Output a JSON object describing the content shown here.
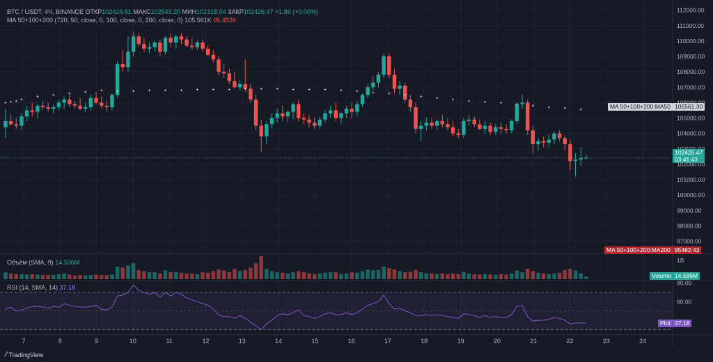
{
  "header": {
    "symbol": "BTC / USDT, 4Ч, BINANCE",
    "open_label": "ОТКР",
    "open": "102424.61",
    "high_label": "МАКС",
    "high": "102543.20",
    "low_label": "МИН",
    "low": "102318.04",
    "close_label": "ЗАКР",
    "close": "102426.47",
    "change": "+1.86 (+0.00%)",
    "ma_label": "MA 50+100+200 (720, 50, close, 0, 100, close, 0, 200, close, 0)",
    "ma_v1": "105.561K",
    "ma_v2": "95.482K"
  },
  "volume_legend": {
    "label": "Объём (SMA, 9)",
    "value": "14.596M"
  },
  "rsi_legend": {
    "label": "RSI (14, SMA, 14)",
    "value": "37.18"
  },
  "tags": {
    "ma50": "MA 50+100+200:MA50",
    "ma50_value": "105561.30",
    "price": "102426.47",
    "countdown": "03:41:43",
    "ma200": "MA 50+100+200:MA200",
    "ma200_value": "95482.43",
    "volume": "Volume",
    "volume_value": "14.596M",
    "rsi_plot": "Plot",
    "rsi_value": "37.18"
  },
  "brand": "TradingView",
  "colors": {
    "up": "#26a69a",
    "down": "#ef5350",
    "rsi": "#7e57c2",
    "ma200_tag": "#b22833",
    "bg": "#161a25"
  },
  "chart_data": {
    "type": "candlestick",
    "price_axis": {
      "ticks": [
        97000,
        98000,
        99000,
        100000,
        101000,
        102000,
        103000,
        104000,
        105000,
        106000,
        107000,
        108000,
        109000,
        110000,
        111000,
        112000
      ],
      "range": [
        96300,
        112300
      ]
    },
    "volume_axis": {
      "ticks": [
        "1B"
      ]
    },
    "rsi_axis": {
      "ticks": [
        80,
        60
      ],
      "bands": [
        70,
        30
      ],
      "range": [
        25,
        82
      ]
    },
    "x_ticks": [
      "7",
      "8",
      "9",
      "10",
      "11",
      "12",
      "13",
      "14",
      "15",
      "16",
      "17",
      "18",
      "19",
      "20",
      "21",
      "22",
      "23",
      "24"
    ],
    "candles": [
      [
        104400,
        105600,
        103700,
        104800
      ],
      [
        104800,
        105200,
        104500,
        104600
      ],
      [
        104600,
        105000,
        104300,
        104500
      ],
      [
        104500,
        105300,
        104200,
        105100
      ],
      [
        105100,
        105800,
        104800,
        105500
      ],
      [
        105500,
        106000,
        105100,
        105400
      ],
      [
        105400,
        105900,
        105000,
        105800
      ],
      [
        105800,
        106100,
        105500,
        105700
      ],
      [
        105700,
        106000,
        105400,
        105600
      ],
      [
        105600,
        105900,
        105300,
        105700
      ],
      [
        105700,
        106200,
        105500,
        106000
      ],
      [
        106000,
        106400,
        105600,
        106200
      ],
      [
        106200,
        106500,
        105700,
        105900
      ],
      [
        105900,
        106100,
        105600,
        105800
      ],
      [
        105800,
        106300,
        105500,
        105600
      ],
      [
        105600,
        106000,
        105400,
        105700
      ],
      [
        105700,
        106500,
        105500,
        106300
      ],
      [
        106300,
        106700,
        105900,
        106000
      ],
      [
        106000,
        106400,
        105600,
        105800
      ],
      [
        105800,
        106100,
        105400,
        105700
      ],
      [
        105700,
        106600,
        105500,
        106500
      ],
      [
        106500,
        108700,
        106300,
        108500
      ],
      [
        108500,
        109400,
        108000,
        108300
      ],
      [
        108300,
        110300,
        108000,
        109300
      ],
      [
        109300,
        110600,
        109000,
        110300
      ],
      [
        110300,
        110500,
        109600,
        109800
      ],
      [
        109800,
        110200,
        109300,
        109500
      ],
      [
        109500,
        109900,
        109200,
        109600
      ],
      [
        109600,
        110000,
        109300,
        109900
      ],
      [
        109900,
        110100,
        109000,
        109300
      ],
      [
        109300,
        110300,
        109100,
        110200
      ],
      [
        110200,
        110500,
        109600,
        109900
      ],
      [
        109900,
        110400,
        109500,
        110300
      ],
      [
        110300,
        110500,
        109800,
        110100
      ],
      [
        110100,
        110300,
        109600,
        109700
      ],
      [
        109700,
        110200,
        109400,
        109600
      ],
      [
        109600,
        110000,
        109400,
        109900
      ],
      [
        109900,
        110100,
        109300,
        109500
      ],
      [
        109500,
        109700,
        109000,
        109100
      ],
      [
        109100,
        109400,
        108600,
        108800
      ],
      [
        108800,
        109000,
        107800,
        108000
      ],
      [
        108000,
        108500,
        107600,
        107900
      ],
      [
        107900,
        108200,
        107200,
        107400
      ],
      [
        107400,
        108000,
        106900,
        107000
      ],
      [
        107000,
        107500,
        106800,
        107200
      ],
      [
        107200,
        108800,
        106700,
        106900
      ],
      [
        106900,
        107200,
        106000,
        106200
      ],
      [
        106200,
        106500,
        104200,
        104500
      ],
      [
        104500,
        104900,
        102800,
        103800
      ],
      [
        103800,
        104800,
        103300,
        104600
      ],
      [
        104600,
        105300,
        104300,
        105000
      ],
      [
        105000,
        105600,
        104700,
        105300
      ],
      [
        105300,
        105800,
        104800,
        105100
      ],
      [
        105100,
        105500,
        104700,
        105400
      ],
      [
        105400,
        106000,
        104900,
        105900
      ],
      [
        105900,
        106200,
        104800,
        105000
      ],
      [
        105000,
        105300,
        104600,
        104900
      ],
      [
        104900,
        105200,
        104400,
        104700
      ],
      [
        104700,
        105000,
        104300,
        104500
      ],
      [
        104500,
        105100,
        104300,
        104900
      ],
      [
        104900,
        105500,
        104700,
        105300
      ],
      [
        105300,
        105800,
        105000,
        105500
      ],
      [
        105500,
        106000,
        104800,
        105000
      ],
      [
        105000,
        105400,
        104600,
        105300
      ],
      [
        105300,
        105800,
        105000,
        105600
      ],
      [
        105600,
        106000,
        105000,
        105400
      ],
      [
        105400,
        106100,
        105100,
        105900
      ],
      [
        105900,
        106600,
        105700,
        106500
      ],
      [
        106500,
        107200,
        106300,
        107000
      ],
      [
        107000,
        107700,
        106800,
        107300
      ],
      [
        107300,
        108000,
        107000,
        107800
      ],
      [
        107800,
        109200,
        107600,
        109000
      ],
      [
        109000,
        109200,
        107600,
        107800
      ],
      [
        107800,
        108200,
        106600,
        106900
      ],
      [
        106900,
        107400,
        106500,
        107100
      ],
      [
        107100,
        107300,
        106000,
        106200
      ],
      [
        106200,
        106500,
        105400,
        105700
      ],
      [
        105700,
        106000,
        104000,
        104300
      ],
      [
        104300,
        104800,
        103500,
        104500
      ],
      [
        104500,
        105000,
        104200,
        104700
      ],
      [
        104700,
        105000,
        104300,
        104500
      ],
      [
        104500,
        104900,
        104200,
        104800
      ],
      [
        104800,
        105200,
        104400,
        104600
      ],
      [
        104600,
        105000,
        104200,
        104400
      ],
      [
        104400,
        104800,
        103800,
        104000
      ],
      [
        104000,
        104300,
        103700,
        103900
      ],
      [
        103900,
        105000,
        103700,
        104800
      ],
      [
        104800,
        105200,
        104500,
        104900
      ],
      [
        104900,
        105100,
        104400,
        104600
      ],
      [
        104600,
        104900,
        104200,
        104300
      ],
      [
        104300,
        104800,
        104000,
        104500
      ],
      [
        104500,
        104700,
        103900,
        104100
      ],
      [
        104100,
        104600,
        103900,
        104400
      ],
      [
        104400,
        104700,
        104000,
        104300
      ],
      [
        104300,
        104600,
        104000,
        104200
      ],
      [
        104200,
        104900,
        104000,
        104800
      ],
      [
        104800,
        106000,
        104600,
        105900
      ],
      [
        105900,
        106500,
        105600,
        106000
      ],
      [
        106000,
        106200,
        103900,
        104200
      ],
      [
        104200,
        104500,
        102700,
        103300
      ],
      [
        103300,
        103700,
        102900,
        103500
      ],
      [
        103500,
        103800,
        103100,
        103400
      ],
      [
        103400,
        103900,
        103100,
        103600
      ],
      [
        103600,
        104100,
        103300,
        104000
      ],
      [
        104000,
        104200,
        103500,
        103700
      ],
      [
        103700,
        103900,
        102900,
        103300
      ],
      [
        103300,
        103600,
        101600,
        102200
      ],
      [
        102200,
        102700,
        101200,
        102300
      ],
      [
        102300,
        103100,
        101900,
        102400
      ],
      [
        102400,
        102600,
        102300,
        102430
      ]
    ],
    "volumes": [
      30,
      25,
      22,
      22,
      20,
      22,
      20,
      18,
      18,
      18,
      22,
      25,
      20,
      15,
      18,
      16,
      18,
      20,
      18,
      18,
      20,
      55,
      50,
      60,
      70,
      40,
      35,
      30,
      30,
      25,
      38,
      30,
      32,
      28,
      25,
      24,
      22,
      30,
      28,
      35,
      42,
      38,
      30,
      45,
      35,
      40,
      50,
      70,
      100,
      45,
      35,
      30,
      28,
      25,
      30,
      35,
      30,
      25,
      22,
      25,
      28,
      30,
      30,
      22,
      25,
      30,
      28,
      35,
      42,
      38,
      40,
      55,
      48,
      42,
      35,
      30,
      32,
      40,
      30,
      25,
      25,
      22,
      25,
      22,
      25,
      22,
      32,
      25,
      22,
      20,
      22,
      20,
      18,
      22,
      20,
      25,
      38,
      30,
      45,
      35,
      28,
      25,
      22,
      25,
      28,
      40,
      45,
      38,
      25,
      12
    ],
    "rsi": [
      52,
      54,
      50,
      51,
      53,
      55,
      55,
      54,
      53,
      55,
      54,
      58,
      56,
      55,
      54,
      54,
      55,
      56,
      52,
      51,
      54,
      66,
      67,
      70,
      78,
      72,
      70,
      68,
      70,
      65,
      70,
      66,
      70,
      68,
      64,
      62,
      60,
      58,
      56,
      52,
      46,
      44,
      44,
      42,
      45,
      42,
      38,
      34,
      30,
      36,
      40,
      45,
      47,
      46,
      48,
      51,
      45,
      44,
      42,
      44,
      47,
      48,
      46,
      46,
      48,
      46,
      48,
      52,
      56,
      58,
      60,
      67,
      58,
      52,
      53,
      50,
      48,
      45,
      45,
      46,
      45,
      46,
      45,
      44,
      43,
      42,
      47,
      46,
      45,
      43,
      45,
      43,
      44,
      43,
      43,
      46,
      55,
      56,
      44,
      39,
      40,
      40,
      41,
      43,
      42,
      40,
      36,
      37,
      37,
      37
    ],
    "ma_dots": [
      [
        0,
        106000
      ],
      [
        1,
        106050
      ],
      [
        2,
        106100
      ],
      [
        3,
        106200
      ],
      [
        6,
        106400
      ],
      [
        9,
        106500
      ],
      [
        12,
        106600
      ],
      [
        15,
        106700
      ],
      [
        18,
        106800
      ],
      [
        21,
        106750
      ],
      [
        24,
        106750
      ],
      [
        27,
        106800
      ],
      [
        30,
        106800
      ],
      [
        33,
        106800
      ],
      [
        36,
        106850
      ],
      [
        39,
        106850
      ],
      [
        42,
        106850
      ],
      [
        45,
        106900
      ],
      [
        48,
        106900
      ],
      [
        51,
        106900
      ],
      [
        54,
        106850
      ],
      [
        57,
        106850
      ],
      [
        60,
        106850
      ],
      [
        63,
        106800
      ],
      [
        66,
        106750
      ],
      [
        69,
        106650
      ],
      [
        72,
        106600
      ],
      [
        75,
        106500
      ],
      [
        78,
        106400
      ],
      [
        81,
        106300
      ],
      [
        84,
        106200
      ],
      [
        87,
        106100
      ],
      [
        90,
        106050
      ],
      [
        93,
        106000
      ],
      [
        96,
        105900
      ],
      [
        99,
        105800
      ],
      [
        102,
        105700
      ],
      [
        105,
        105650
      ],
      [
        108,
        105560
      ]
    ]
  }
}
